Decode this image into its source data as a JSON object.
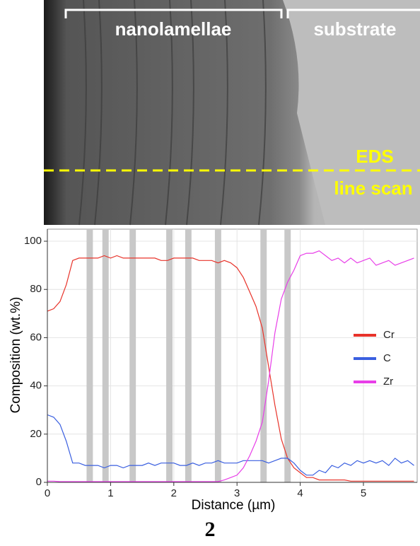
{
  "micrograph": {
    "labels": [
      "nanolamellae",
      "substrate",
      "EDS",
      "line scan"
    ]
  },
  "chart_data": {
    "type": "line",
    "x_label": "Distance (µm)",
    "y_label": "Composition (wt.%)",
    "x": [
      0,
      0.1,
      0.2,
      0.3,
      0.4,
      0.5,
      0.6,
      0.7,
      0.8,
      0.9,
      1.0,
      1.1,
      1.2,
      1.3,
      1.4,
      1.5,
      1.6,
      1.7,
      1.8,
      1.9,
      2.0,
      2.1,
      2.2,
      2.3,
      2.4,
      2.5,
      2.6,
      2.7,
      2.8,
      2.9,
      3.0,
      3.1,
      3.2,
      3.3,
      3.4,
      3.5,
      3.6,
      3.7,
      3.8,
      3.9,
      4.0,
      4.1,
      4.2,
      4.3,
      4.4,
      4.5,
      4.6,
      4.7,
      4.8,
      4.9,
      5.0,
      5.1,
      5.2,
      5.3,
      5.4,
      5.5,
      5.6,
      5.7,
      5.8
    ],
    "series": [
      {
        "name": "Cr",
        "color": "#e8332a",
        "values": [
          71,
          72,
          75,
          82,
          92,
          93,
          93,
          93,
          93,
          94,
          93,
          94,
          93,
          93,
          93,
          93,
          93,
          93,
          92,
          92,
          93,
          93,
          93,
          93,
          92,
          92,
          92,
          91,
          92,
          91,
          89,
          85,
          79,
          73,
          64,
          48,
          32,
          18,
          10,
          6,
          4,
          2,
          2,
          1,
          1,
          1,
          1,
          1,
          0.5,
          0.5,
          0.5,
          0.5,
          0.5,
          0.5,
          0.5,
          0.5,
          0.5,
          0.5,
          0.5
        ]
      },
      {
        "name": "C",
        "color": "#3a5fe0",
        "values": [
          28,
          27,
          24,
          17,
          8,
          8,
          7,
          7,
          7,
          6,
          7,
          7,
          6,
          7,
          7,
          7,
          8,
          7,
          8,
          8,
          8,
          7,
          7,
          8,
          7,
          8,
          8,
          9,
          8,
          8,
          8,
          9,
          9,
          9,
          9,
          8,
          9,
          10,
          10,
          8,
          5,
          3,
          3,
          5,
          4,
          7,
          6,
          8,
          7,
          9,
          8,
          9,
          8,
          9,
          7,
          10,
          8,
          9,
          7
        ]
      },
      {
        "name": "Zr",
        "color": "#e83ee8",
        "values": [
          0.5,
          0.5,
          0.3,
          0.3,
          0.3,
          0.3,
          0.3,
          0.3,
          0.3,
          0.3,
          0.3,
          0.3,
          0.3,
          0.3,
          0.3,
          0.3,
          0.3,
          0.3,
          0.3,
          0.3,
          0.3,
          0.3,
          0.3,
          0.3,
          0.3,
          0.3,
          0.3,
          0.3,
          1,
          2,
          3,
          6,
          11,
          17,
          25,
          42,
          62,
          76,
          83,
          88,
          94,
          95,
          95,
          96,
          94,
          92,
          93,
          91,
          93,
          91,
          92,
          93,
          90,
          91,
          92,
          90,
          91,
          92,
          93
        ]
      }
    ],
    "bands": [
      [
        0.62,
        0.72
      ],
      [
        0.87,
        0.97
      ],
      [
        1.3,
        1.4
      ],
      [
        1.88,
        1.98
      ],
      [
        2.18,
        2.28
      ],
      [
        2.65,
        2.75
      ],
      [
        3.37,
        3.47
      ],
      [
        3.75,
        3.85
      ]
    ],
    "band_color": "#c8c8c8",
    "xlim": [
      0,
      5.85
    ],
    "ylim": [
      0,
      105
    ],
    "xticks": [
      0,
      1,
      2,
      3,
      4,
      5
    ],
    "yticks": [
      0,
      20,
      40,
      60,
      80,
      100
    ],
    "grid": true,
    "legend": "right"
  },
  "caption": "2"
}
